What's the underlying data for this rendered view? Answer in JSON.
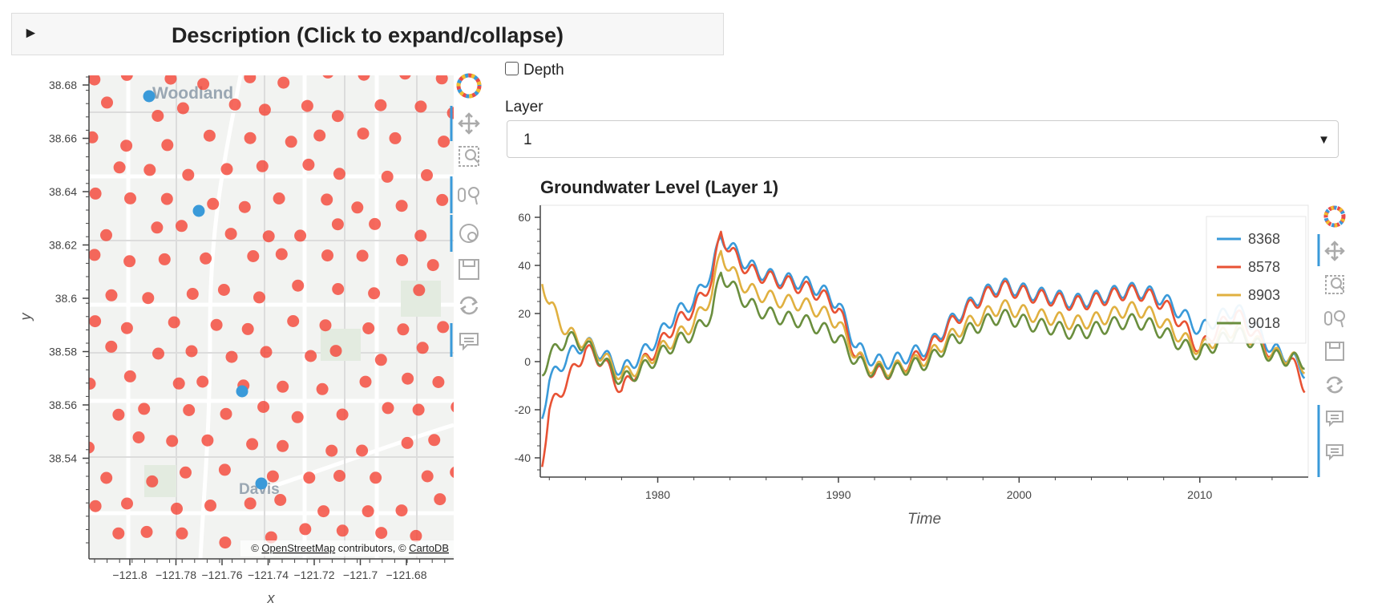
{
  "description": {
    "arrow": "►",
    "title": "Description (Click to expand/collapse)"
  },
  "controls": {
    "depth_label": "Depth",
    "layer_label": "Layer",
    "layer_value": "1"
  },
  "map": {
    "ylabel": "y",
    "xlabel": "x",
    "yticks": [
      "38.68",
      "38.66",
      "38.64",
      "38.62",
      "38.6",
      "38.58",
      "38.56",
      "38.54"
    ],
    "xticks": [
      "−121.8",
      "−121.78",
      "−121.76",
      "−121.74",
      "−121.72",
      "−121.7",
      "−121.68"
    ],
    "place_labels": [
      "Woodland",
      "Davis"
    ],
    "attribution_prefix": "© ",
    "attribution_osm": "OpenStreetMap",
    "attribution_mid": " contributors, © ",
    "attribution_carto": "CartoDB",
    "point_color": "#f44336",
    "highlight_color": "#3a9ad9"
  },
  "chart_data": {
    "type": "line",
    "title": "Groundwater Level (Layer 1)",
    "xlabel": "Time",
    "ylabel": "",
    "xlim": [
      1973.5,
      2016
    ],
    "ylim": [
      -48,
      65
    ],
    "xticks": [
      1980,
      1990,
      2000,
      2010
    ],
    "yticks": [
      60,
      40,
      20,
      0,
      -20,
      -40
    ],
    "legend_position": "top-right",
    "series": [
      {
        "name": "8368",
        "color": "#3a9ad9",
        "offset": 2,
        "values": [
          [
            1973.6,
            -22
          ],
          [
            1974,
            -8
          ],
          [
            1975,
            2
          ],
          [
            1976,
            8
          ],
          [
            1977,
            3
          ],
          [
            1978,
            -4
          ],
          [
            1979,
            2
          ],
          [
            1980,
            10
          ],
          [
            1981,
            20
          ],
          [
            1982,
            25
          ],
          [
            1983,
            38
          ],
          [
            1983.5,
            52
          ],
          [
            1984,
            48
          ],
          [
            1985,
            40
          ],
          [
            1986,
            36
          ],
          [
            1987,
            34
          ],
          [
            1988,
            33
          ],
          [
            1989,
            30
          ],
          [
            1990,
            24
          ],
          [
            1991,
            6
          ],
          [
            1992,
            0
          ],
          [
            1993,
            0
          ],
          [
            1994,
            3
          ],
          [
            1995,
            6
          ],
          [
            1996,
            15
          ],
          [
            1997,
            22
          ],
          [
            1998,
            28
          ],
          [
            1999,
            32
          ],
          [
            2000,
            30
          ],
          [
            2001,
            28
          ],
          [
            2002,
            27
          ],
          [
            2003,
            25
          ],
          [
            2004,
            26
          ],
          [
            2005,
            28
          ],
          [
            2006,
            30
          ],
          [
            2007,
            29
          ],
          [
            2008,
            26
          ],
          [
            2009,
            20
          ],
          [
            2010,
            13
          ],
          [
            2011,
            18
          ],
          [
            2012,
            22
          ],
          [
            2013,
            15
          ],
          [
            2014,
            5
          ],
          [
            2015,
            2
          ],
          [
            2015.8,
            -4
          ]
        ]
      },
      {
        "name": "8578",
        "color": "#e85234",
        "offset": 0,
        "values": [
          [
            1973.6,
            -42
          ],
          [
            1974,
            -20
          ],
          [
            1975,
            -8
          ],
          [
            1976,
            5
          ],
          [
            1977,
            0
          ],
          [
            1978,
            -12
          ],
          [
            1979,
            -2
          ],
          [
            1980,
            6
          ],
          [
            1981,
            16
          ],
          [
            1982,
            22
          ],
          [
            1983,
            34
          ],
          [
            1983.5,
            54
          ],
          [
            1984,
            46
          ],
          [
            1985,
            38
          ],
          [
            1986,
            35
          ],
          [
            1987,
            33
          ],
          [
            1988,
            31
          ],
          [
            1989,
            28
          ],
          [
            1990,
            22
          ],
          [
            1991,
            2
          ],
          [
            1992,
            -5
          ],
          [
            1993,
            -4
          ],
          [
            1994,
            0
          ],
          [
            1995,
            5
          ],
          [
            1996,
            14
          ],
          [
            1997,
            21
          ],
          [
            1998,
            27
          ],
          [
            1999,
            31
          ],
          [
            2000,
            29
          ],
          [
            2001,
            27
          ],
          [
            2002,
            26
          ],
          [
            2003,
            24
          ],
          [
            2004,
            25
          ],
          [
            2005,
            27
          ],
          [
            2006,
            29
          ],
          [
            2007,
            28
          ],
          [
            2008,
            24
          ],
          [
            2009,
            16
          ],
          [
            2010,
            5
          ],
          [
            2011,
            14
          ],
          [
            2012,
            20
          ],
          [
            2013,
            12
          ],
          [
            2014,
            3
          ],
          [
            2015,
            1
          ],
          [
            2015.8,
            -10
          ]
        ]
      },
      {
        "name": "8903",
        "color": "#e0b040",
        "offset": 0,
        "values": [
          [
            1973.6,
            34
          ],
          [
            1974,
            24
          ],
          [
            1975,
            12
          ],
          [
            1976,
            8
          ],
          [
            1977,
            2
          ],
          [
            1978,
            -6
          ],
          [
            1979,
            -2
          ],
          [
            1980,
            4
          ],
          [
            1981,
            10
          ],
          [
            1982,
            16
          ],
          [
            1983,
            28
          ],
          [
            1983.5,
            46
          ],
          [
            1984,
            38
          ],
          [
            1985,
            30
          ],
          [
            1986,
            27
          ],
          [
            1987,
            25
          ],
          [
            1988,
            24
          ],
          [
            1989,
            21
          ],
          [
            1990,
            16
          ],
          [
            1991,
            2
          ],
          [
            1992,
            -3
          ],
          [
            1993,
            -3
          ],
          [
            1994,
            -1
          ],
          [
            1995,
            2
          ],
          [
            1996,
            9
          ],
          [
            1997,
            15
          ],
          [
            1998,
            19
          ],
          [
            1999,
            23
          ],
          [
            2000,
            21
          ],
          [
            2001,
            19
          ],
          [
            2002,
            18
          ],
          [
            2003,
            16
          ],
          [
            2004,
            17
          ],
          [
            2005,
            19
          ],
          [
            2006,
            22
          ],
          [
            2007,
            21
          ],
          [
            2008,
            16
          ],
          [
            2009,
            10
          ],
          [
            2010,
            5
          ],
          [
            2011,
            10
          ],
          [
            2012,
            14
          ],
          [
            2013,
            9
          ],
          [
            2014,
            3
          ],
          [
            2015,
            2
          ],
          [
            2015.8,
            -2
          ]
        ]
      },
      {
        "name": "9018",
        "color": "#6a8e3e",
        "offset": 0,
        "values": [
          [
            1973.6,
            -4
          ],
          [
            1974,
            2
          ],
          [
            1975,
            10
          ],
          [
            1976,
            7
          ],
          [
            1977,
            0
          ],
          [
            1978,
            -8
          ],
          [
            1979,
            -4
          ],
          [
            1980,
            2
          ],
          [
            1981,
            8
          ],
          [
            1982,
            12
          ],
          [
            1983,
            20
          ],
          [
            1983.5,
            37
          ],
          [
            1984,
            32
          ],
          [
            1985,
            24
          ],
          [
            1986,
            20
          ],
          [
            1987,
            18
          ],
          [
            1988,
            17
          ],
          [
            1989,
            14
          ],
          [
            1990,
            10
          ],
          [
            1991,
            0
          ],
          [
            1992,
            -4
          ],
          [
            1993,
            -4
          ],
          [
            1994,
            -2
          ],
          [
            1995,
            0
          ],
          [
            1996,
            7
          ],
          [
            1997,
            12
          ],
          [
            1998,
            16
          ],
          [
            1999,
            19
          ],
          [
            2000,
            17
          ],
          [
            2001,
            15
          ],
          [
            2002,
            14
          ],
          [
            2003,
            12
          ],
          [
            2004,
            13
          ],
          [
            2005,
            15
          ],
          [
            2006,
            17
          ],
          [
            2007,
            16
          ],
          [
            2008,
            12
          ],
          [
            2009,
            7
          ],
          [
            2010,
            3
          ],
          [
            2011,
            8
          ],
          [
            2012,
            12
          ],
          [
            2013,
            8
          ],
          [
            2014,
            2
          ],
          [
            2015,
            1
          ],
          [
            2015.8,
            0
          ]
        ]
      }
    ]
  }
}
